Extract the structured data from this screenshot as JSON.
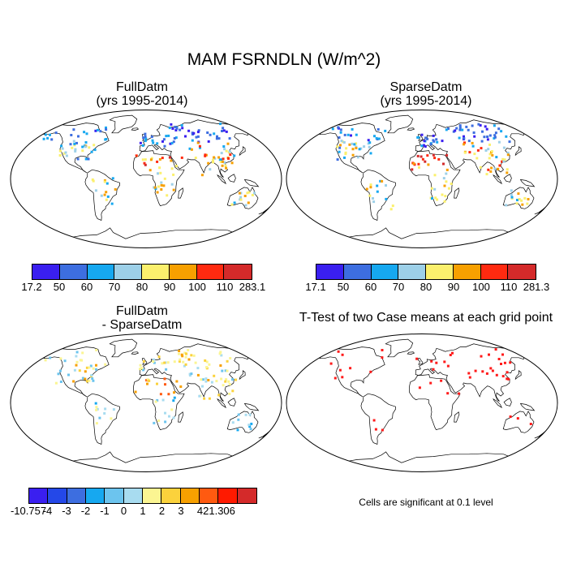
{
  "title": "MAM FSRNDLN (W/m^2)",
  "panels": [
    {
      "id": "full",
      "title_line1": "FullDatm",
      "title_line2": "(yrs 1995-2014)"
    },
    {
      "id": "sparse",
      "title_line1": "SparseDatm",
      "title_line2": "(yrs 1995-2014)"
    },
    {
      "id": "diff",
      "title_line1": "FullDatm",
      "title_line2": "- SparseDatm"
    },
    {
      "id": "ttest",
      "title_line1": "T-Test of two Case means at each grid point",
      "title_line2": ""
    }
  ],
  "colorbars": {
    "full": {
      "labels": [
        "17.2",
        "50",
        "60",
        "70",
        "80",
        "90",
        "100",
        "110",
        "283.1"
      ],
      "colors": [
        "#3a1ff0",
        "#3d6ee0",
        "#16a8f0",
        "#9dd0e8",
        "#fbf06d",
        "#f7a000",
        "#ff2a10",
        "#d42a2a"
      ]
    },
    "sparse": {
      "labels": [
        "17.1",
        "50",
        "60",
        "70",
        "80",
        "90",
        "100",
        "110",
        "281.3"
      ],
      "colors": [
        "#3a1ff0",
        "#3d6ee0",
        "#16a8f0",
        "#9dd0e8",
        "#fbf06d",
        "#f7a000",
        "#ff2a10",
        "#d42a2a"
      ]
    },
    "diff": {
      "labels": [
        "-10.757",
        "-4",
        "-3",
        "-2",
        "-1",
        "0",
        "1",
        "2",
        "3",
        "4",
        "21.306"
      ],
      "colors": [
        "#3a1ff0",
        "#2448e8",
        "#3d6ee0",
        "#16a8f0",
        "#6cc4ee",
        "#a8dcf0",
        "#fbf592",
        "#fbd23c",
        "#f7a000",
        "#ff5a10",
        "#ff1a00",
        "#d42a2a"
      ]
    }
  },
  "ttest_note": "Cells are significant at 0.1 level",
  "chart_data": [
    {
      "type": "heatmap",
      "title": "FullDatm",
      "subtitle": "(yrs 1995-2014)",
      "map": "world-robinson",
      "value_range": [
        17.2,
        283.1
      ],
      "units": "W/m^2",
      "levels": [
        50,
        60,
        70,
        80,
        90,
        100,
        110
      ]
    },
    {
      "type": "heatmap",
      "title": "SparseDatm",
      "subtitle": "(yrs 1995-2014)",
      "map": "world-robinson",
      "value_range": [
        17.1,
        281.3
      ],
      "units": "W/m^2",
      "levels": [
        50,
        60,
        70,
        80,
        90,
        100,
        110
      ]
    },
    {
      "type": "heatmap",
      "title": "FullDatm",
      "subtitle": "- SparseDatm",
      "map": "world-robinson",
      "value_range": [
        -10.757,
        21.306
      ],
      "levels": [
        -4,
        -3,
        -2,
        -1,
        0,
        1,
        2,
        3,
        4
      ]
    },
    {
      "type": "heatmap",
      "title": "T-Test of two Case means at each grid point",
      "map": "world-robinson",
      "note": "Cells are significant at 0.1 level",
      "significance_level": 0.1
    }
  ]
}
